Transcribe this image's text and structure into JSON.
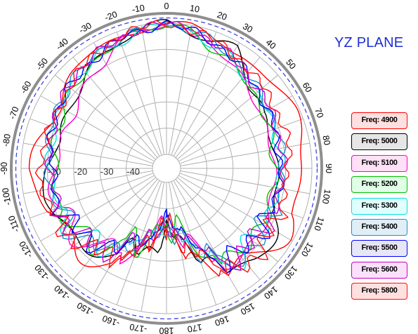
{
  "title": "YZ PLANE",
  "chart_data": {
    "type": "polar",
    "angle_unit": "deg",
    "angle_zero": "top",
    "angle_direction": "clockwise",
    "angle_labels_right": [
      "0",
      "10",
      "20",
      "30",
      "40",
      "50",
      "60",
      "70",
      "80",
      "90",
      "100",
      "110",
      "120",
      "130",
      "140",
      "150",
      "160",
      "170",
      "180"
    ],
    "angle_labels_left": [
      "-10",
      "-20",
      "-30",
      "-40",
      "-50",
      "-60",
      "-70",
      "-80",
      "-90",
      "-100",
      "-110",
      "-120",
      "-130",
      "-140",
      "-150",
      "-160",
      "-170"
    ],
    "radial_axis": {
      "unit": "dB",
      "min": -50,
      "max": 0,
      "ring_labels": [
        "-10",
        "-20",
        "-30",
        "-40"
      ]
    },
    "reference_circle_db": 2,
    "legend_placement": "right",
    "series_profile_angles_deg": [
      -180,
      -160,
      -140,
      -120,
      -105,
      -90,
      -75,
      -60,
      -45,
      -30,
      -20,
      -10,
      0,
      10,
      20,
      30,
      45,
      60,
      75,
      90,
      105,
      120,
      135,
      150,
      165,
      180
    ],
    "series": [
      {
        "name": "Freq: 4900",
        "color": "#ff0000",
        "fill": "#ffe0e0",
        "gain_db": [
          -30,
          -16,
          -12,
          -8,
          -6,
          -4,
          -6,
          -8,
          -5,
          -3,
          -2,
          -1,
          0,
          -1,
          -3,
          -4,
          -3,
          -3,
          -2,
          -3,
          -5,
          -5,
          -6,
          -8,
          -20,
          -30
        ]
      },
      {
        "name": "Freq: 5000",
        "color": "#000000",
        "fill": "#e6e6e6",
        "gain_db": [
          -28,
          -18,
          -14,
          -10,
          -8,
          -9,
          -14,
          -12,
          -10,
          -6,
          -3,
          -2,
          0,
          -2,
          -4,
          -3,
          -10,
          -14,
          -13,
          -14,
          -12,
          -8,
          -6,
          -9,
          -22,
          -28
        ]
      },
      {
        "name": "Freq: 5100",
        "color": "#ff00cc",
        "fill": "#ffe0f6",
        "gain_db": [
          -30,
          -20,
          -16,
          -12,
          -11,
          -12,
          -15,
          -14,
          -12,
          -8,
          -4,
          -2,
          0,
          -3,
          -5,
          -8,
          -12,
          -14,
          -15,
          -14,
          -14,
          -13,
          -11,
          -12,
          -24,
          -30
        ]
      },
      {
        "name": "Freq: 5200",
        "color": "#00c000",
        "fill": "#e0ffe6",
        "gain_db": [
          -30,
          -22,
          -17,
          -13,
          -12,
          -13,
          -12,
          -10,
          -8,
          -6,
          -4,
          -2,
          0,
          -3,
          -6,
          -8,
          -11,
          -13,
          -14,
          -14,
          -14,
          -14,
          -13,
          -13,
          -25,
          -30
        ]
      },
      {
        "name": "Freq: 5300",
        "color": "#00e0e0",
        "fill": "#e0ffff",
        "gain_db": [
          -30,
          -22,
          -17,
          -12,
          -12,
          -11,
          -10,
          -9,
          -7,
          -5,
          -4,
          -2,
          0,
          -3,
          -5,
          -7,
          -10,
          -11,
          -12,
          -12,
          -12,
          -13,
          -12,
          -12,
          -24,
          -30
        ]
      },
      {
        "name": "Freq: 5400",
        "color": "#1e90c8",
        "fill": "#e0eef8",
        "gain_db": [
          -30,
          -21,
          -16,
          -12,
          -11,
          -10,
          -9,
          -8,
          -6,
          -4,
          -3,
          -2,
          0,
          -2,
          -4,
          -6,
          -9,
          -10,
          -11,
          -11,
          -11,
          -12,
          -11,
          -12,
          -23,
          -30
        ]
      },
      {
        "name": "Freq: 5500",
        "color": "#0000ff",
        "fill": "#e6e6f6",
        "gain_db": [
          -32,
          -22,
          -17,
          -13,
          -12,
          -12,
          -10,
          -8,
          -7,
          -5,
          -3,
          -2,
          0,
          -2,
          -4,
          -6,
          -9,
          -11,
          -12,
          -12,
          -12,
          -13,
          -13,
          -13,
          -25,
          -32
        ]
      },
      {
        "name": "Freq: 5600",
        "color": "#c800c8",
        "fill": "#fbe0fb",
        "gain_db": [
          -31,
          -21,
          -16,
          -12,
          -12,
          -11,
          -10,
          -8,
          -6,
          -4,
          -3,
          -1,
          0,
          -2,
          -4,
          -6,
          -9,
          -10,
          -11,
          -11,
          -11,
          -12,
          -12,
          -13,
          -24,
          -31
        ]
      },
      {
        "name": "Freq: 5800",
        "color": "#ff1010",
        "fill": "#ffe0e0",
        "gain_db": [
          -30,
          -18,
          -14,
          -10,
          -8,
          -7,
          -8,
          -9,
          -6,
          -4,
          -2,
          -1,
          0,
          -2,
          -3,
          -5,
          -7,
          -8,
          -8,
          -9,
          -10,
          -9,
          -8,
          -10,
          -21,
          -30
        ]
      }
    ]
  }
}
